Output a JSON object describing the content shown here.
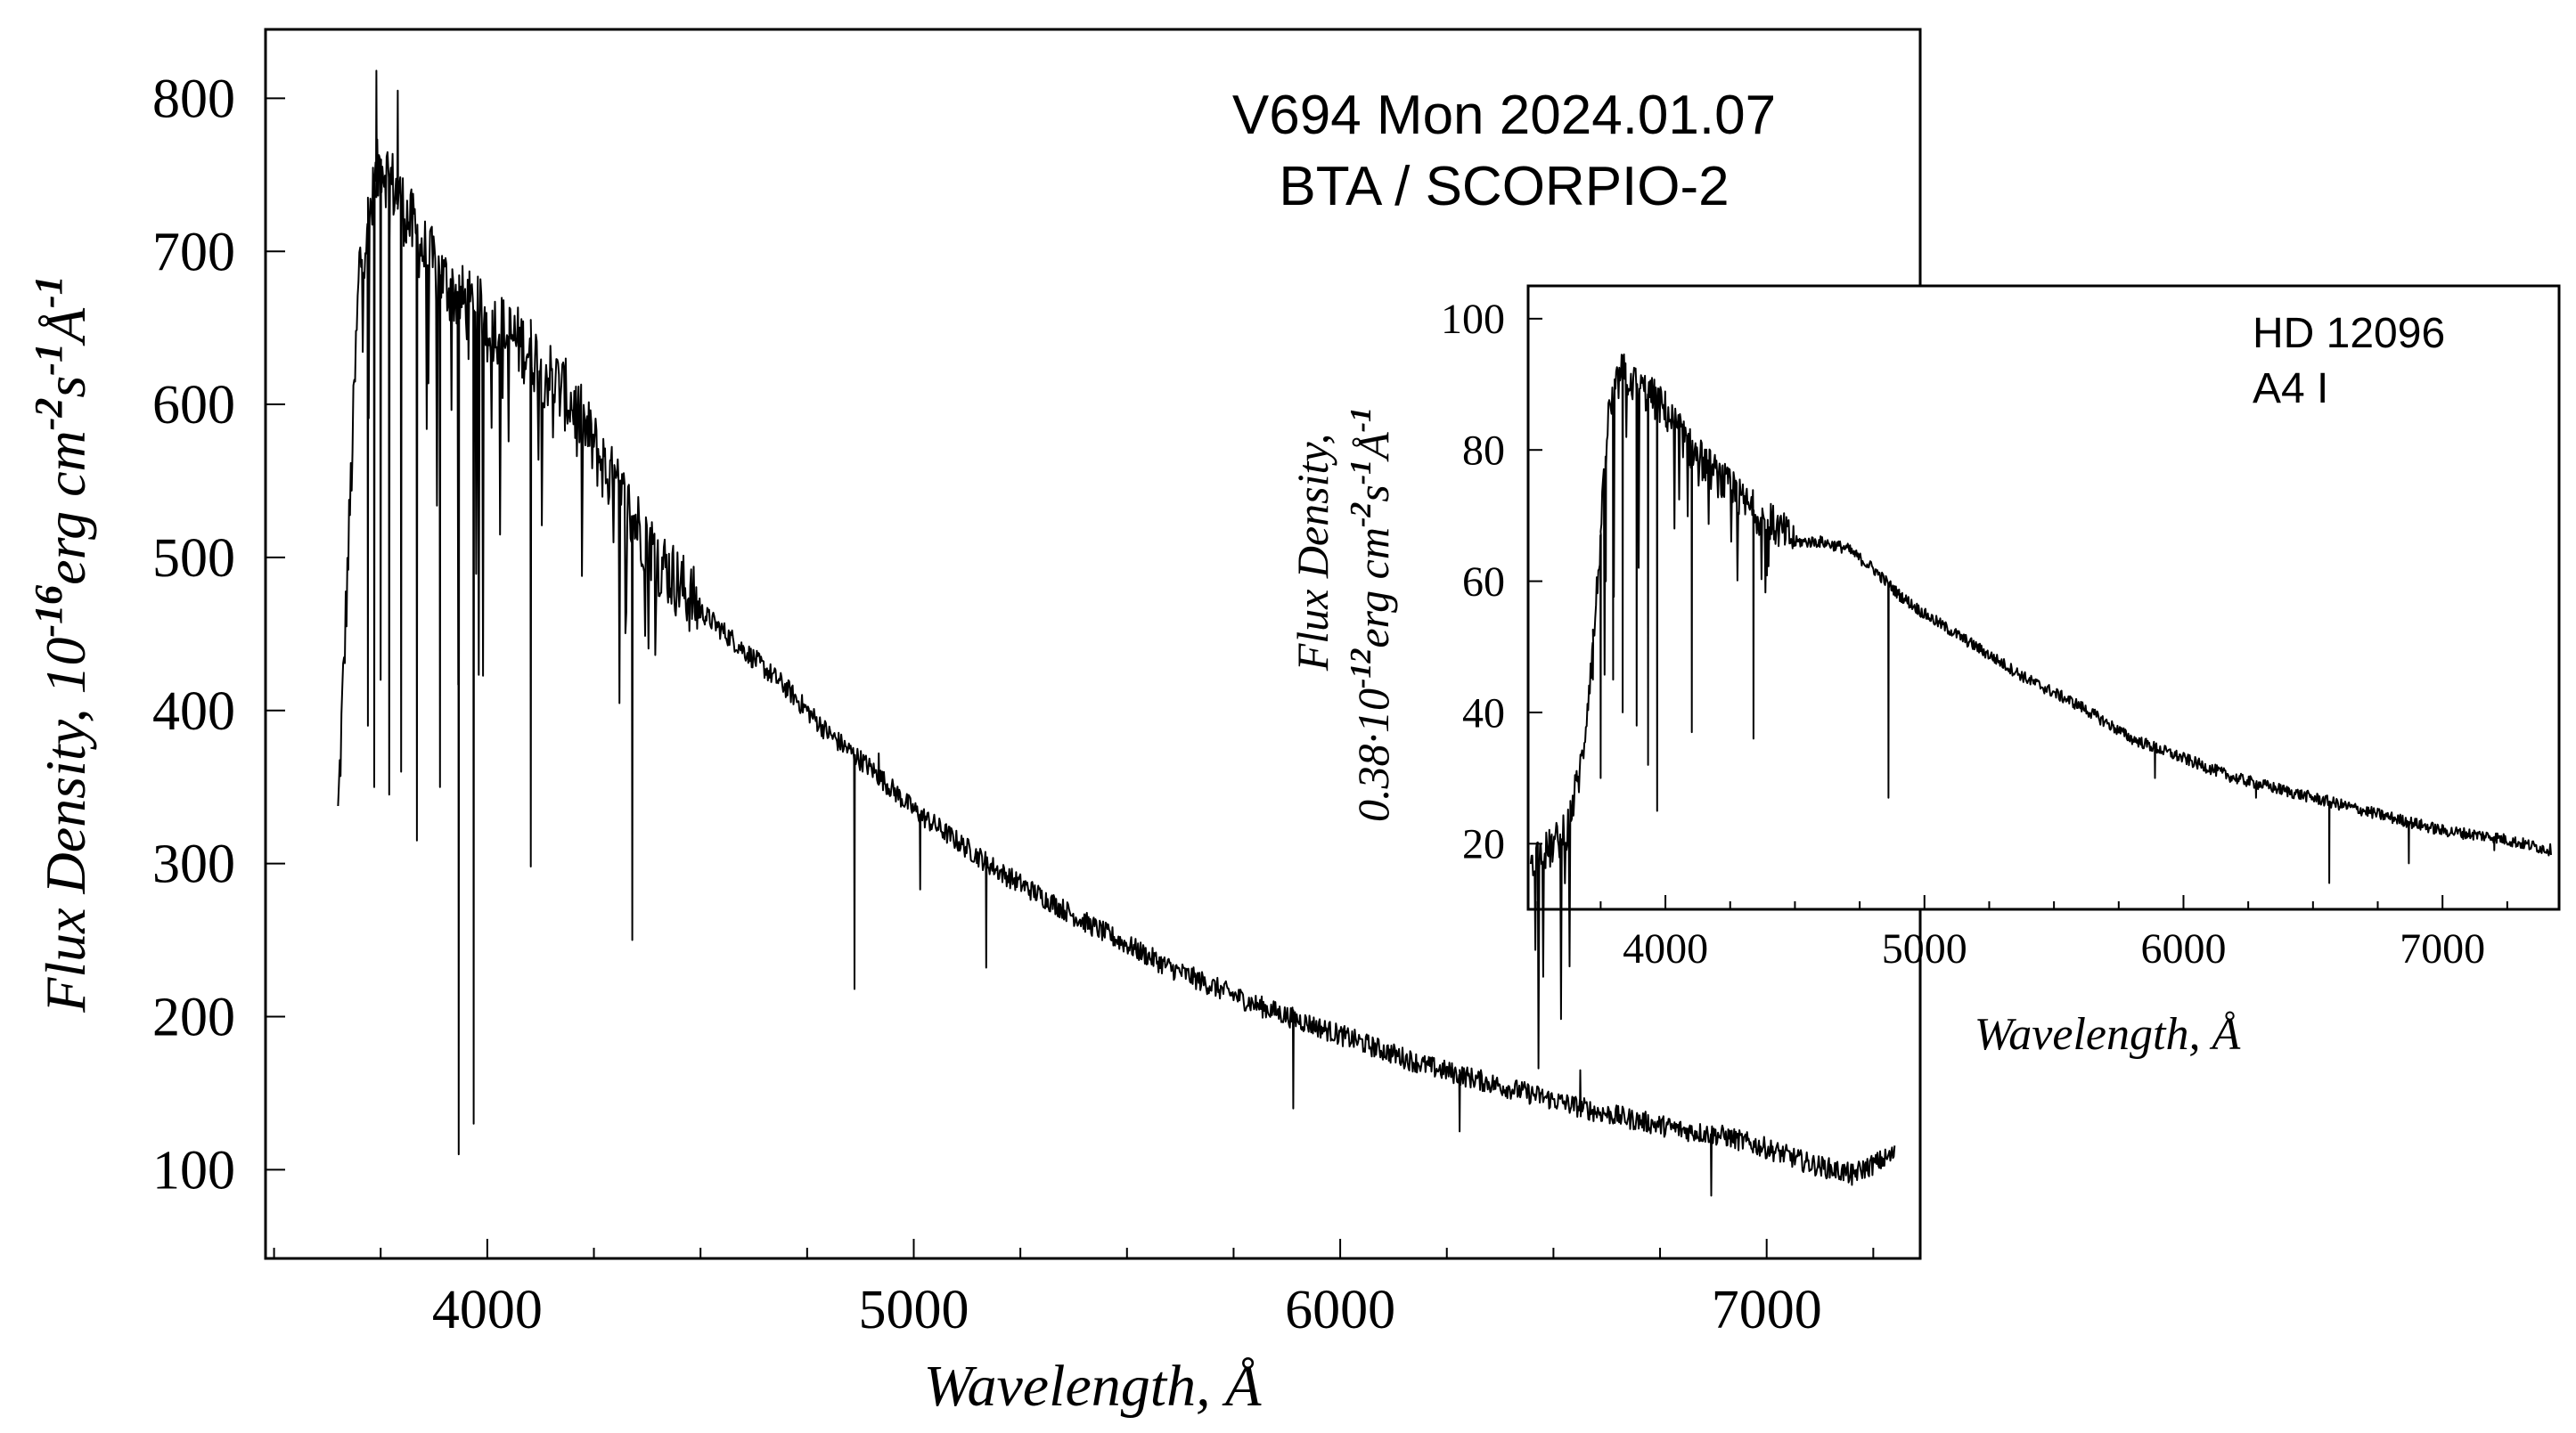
{
  "chart_data": [
    {
      "type": "line",
      "title": [
        "V694 Mon  2024.01.07",
        "BTA / SCORPIO-2"
      ],
      "xlabel": "Wavelength, Å",
      "ylabel": {
        "prefix": "Flux Density, 10",
        "exp1": "-16",
        "mid": "erg cm",
        "exp2": "-2",
        "s": "s",
        "exp3": "-1",
        "unit": "Å",
        "exp4": "-1"
      },
      "xlim": [
        3480,
        7360
      ],
      "ylim": [
        42,
        845
      ],
      "xticks": [
        4000,
        5000,
        6000,
        7000
      ],
      "yticks": [
        100,
        200,
        300,
        400,
        500,
        600,
        700,
        800
      ],
      "grid": false,
      "series": [
        {
          "continuum": [
            [
              3650,
              330
            ],
            [
              3700,
              690
            ],
            [
              3750,
              760
            ],
            [
              3800,
              730
            ],
            [
              3850,
              700
            ],
            [
              3900,
              680
            ],
            [
              3950,
              665
            ],
            [
              4000,
              655
            ],
            [
              4100,
              635
            ],
            [
              4200,
              600
            ],
            [
              4300,
              545
            ],
            [
              4400,
              500
            ],
            [
              4500,
              465
            ],
            [
              4600,
              440
            ],
            [
              4700,
              415
            ],
            [
              4800,
              385
            ],
            [
              4900,
              362
            ],
            [
              5000,
              335
            ],
            [
              5200,
              295
            ],
            [
              5400,
              262
            ],
            [
              5600,
              232
            ],
            [
              5800,
              208
            ],
            [
              6000,
              188
            ],
            [
              6200,
              168
            ],
            [
              6400,
              153
            ],
            [
              6600,
              138
            ],
            [
              6800,
              126
            ],
            [
              6900,
              122
            ],
            [
              7000,
              114
            ],
            [
              7100,
              104
            ],
            [
              7200,
              97
            ],
            [
              7300,
              110
            ]
          ],
          "absorption_lines": [
            {
              "x": 3720,
              "y": 390
            },
            {
              "x": 3735,
              "y": 350
            },
            {
              "x": 3750,
              "y": 420
            },
            {
              "x": 3770,
              "y": 345
            },
            {
              "x": 3798,
              "y": 360
            },
            {
              "x": 3835,
              "y": 315
            },
            {
              "x": 3889,
              "y": 350
            },
            {
              "x": 3933,
              "y": 110
            },
            {
              "x": 3968,
              "y": 130
            },
            {
              "x": 4102,
              "y": 298
            },
            {
              "x": 4340,
              "y": 250
            },
            {
              "x": 4861,
              "y": 218
            },
            {
              "x": 5015,
              "y": 283
            },
            {
              "x": 5170,
              "y": 232
            },
            {
              "x": 5890,
              "y": 140
            },
            {
              "x": 6280,
              "y": 125
            },
            {
              "x": 6870,
              "y": 83
            },
            {
              "x": 7200,
              "y": 90
            }
          ],
          "emission_peaks": [
            {
              "x": 3740,
              "y": 818
            },
            {
              "x": 3790,
              "y": 805
            },
            {
              "x": 4918,
              "y": 372
            },
            {
              "x": 6563,
              "y": 165
            }
          ]
        }
      ]
    },
    {
      "type": "line",
      "title": [
        "HD 12096",
        "A4 I"
      ],
      "xlabel": "Wavelength, Å",
      "ylabel": {
        "line1": "Flux Density,",
        "prefix": "0.38·10",
        "exp1": "-12",
        "mid": "erg cm",
        "exp2": "-2",
        "s": "s",
        "exp3": "-1",
        "unit": "Å",
        "exp4": "-1"
      },
      "xlim": [
        3470,
        7450
      ],
      "ylim": [
        10,
        105
      ],
      "xticks": [
        4000,
        5000,
        6000,
        7000
      ],
      "yticks": [
        20,
        40,
        60,
        80,
        100
      ],
      "grid": false,
      "series": [
        {
          "continuum": [
            [
              3480,
              18
            ],
            [
              3550,
              19
            ],
            [
              3620,
              22
            ],
            [
              3680,
              33
            ],
            [
              3730,
              55
            ],
            [
              3780,
              85
            ],
            [
              3830,
              92
            ],
            [
              3880,
              90
            ],
            [
              3950,
              88
            ],
            [
              4000,
              86
            ],
            [
              4100,
              80
            ],
            [
              4200,
              76
            ],
            [
              4300,
              72
            ],
            [
              4400,
              69
            ],
            [
              4500,
              66
            ],
            [
              4600,
              66
            ],
            [
              4700,
              65
            ],
            [
              4800,
              62
            ],
            [
              4900,
              58
            ],
            [
              5000,
              55
            ],
            [
              5200,
              50
            ],
            [
              5400,
              45
            ],
            [
              5600,
              41
            ],
            [
              5800,
              36
            ],
            [
              6000,
              33
            ],
            [
              6200,
              30
            ],
            [
              6400,
              28
            ],
            [
              6600,
              26
            ],
            [
              6800,
              24
            ],
            [
              7000,
              22
            ],
            [
              7200,
              21
            ],
            [
              7420,
              19
            ]
          ],
          "absorption_lines": [
            {
              "x": 3720,
              "y": 45
            },
            {
              "x": 3750,
              "y": 30
            },
            {
              "x": 3770,
              "y": 60
            },
            {
              "x": 3798,
              "y": 45
            },
            {
              "x": 3835,
              "y": 40
            },
            {
              "x": 3889,
              "y": 38
            },
            {
              "x": 3933,
              "y": 32
            },
            {
              "x": 3968,
              "y": 25
            },
            {
              "x": 4102,
              "y": 37
            },
            {
              "x": 4340,
              "y": 36
            },
            {
              "x": 4861,
              "y": 27
            },
            {
              "x": 5890,
              "y": 30
            },
            {
              "x": 6280,
              "y": 27
            },
            {
              "x": 6563,
              "y": 14
            },
            {
              "x": 6870,
              "y": 17
            },
            {
              "x": 7200,
              "y": 19
            }
          ]
        }
      ]
    }
  ]
}
